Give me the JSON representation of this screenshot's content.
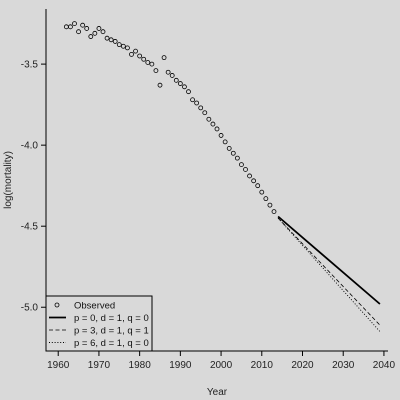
{
  "chart_data": {
    "type": "line",
    "title": "",
    "xlabel": "Year",
    "ylabel": "log(mortality)",
    "xlim": [
      1957,
      2041
    ],
    "ylim": [
      -5.27,
      -3.16
    ],
    "xticks": [
      1960,
      1970,
      1980,
      1990,
      2000,
      2010,
      2020,
      2030,
      2040
    ],
    "xtick_labels": [
      "1960",
      "1970",
      "1980",
      "1990",
      "2000",
      "2010",
      "2020",
      "2030",
      "2040"
    ],
    "yticks": [
      -5.0,
      -4.5,
      -4.0,
      -3.5
    ],
    "ytick_labels": [
      "-5.0",
      "-4.5",
      "-4.0",
      "-3.5"
    ],
    "grid": false,
    "legend_position": "bottom-left",
    "observed": {
      "name": "Observed",
      "x": [
        1962,
        1963,
        1964,
        1965,
        1966,
        1967,
        1968,
        1969,
        1970,
        1971,
        1972,
        1973,
        1974,
        1975,
        1976,
        1977,
        1978,
        1979,
        1980,
        1981,
        1982,
        1983,
        1984,
        1985,
        1986,
        1987,
        1988,
        1989,
        1990,
        1991,
        1992,
        1993,
        1994,
        1995,
        1996,
        1997,
        1998,
        1999,
        2000,
        2001,
        2002,
        2003,
        2004,
        2005,
        2006,
        2007,
        2008,
        2009,
        2010,
        2011,
        2012,
        2013
      ],
      "y": [
        -3.27,
        -3.27,
        -3.25,
        -3.3,
        -3.26,
        -3.28,
        -3.33,
        -3.31,
        -3.28,
        -3.3,
        -3.34,
        -3.35,
        -3.36,
        -3.38,
        -3.39,
        -3.4,
        -3.44,
        -3.42,
        -3.45,
        -3.47,
        -3.49,
        -3.5,
        -3.54,
        -3.63,
        -3.46,
        -3.55,
        -3.57,
        -3.6,
        -3.62,
        -3.64,
        -3.67,
        -3.72,
        -3.74,
        -3.77,
        -3.8,
        -3.84,
        -3.87,
        -3.9,
        -3.94,
        -3.98,
        -4.02,
        -4.05,
        -4.08,
        -4.12,
        -4.15,
        -4.19,
        -4.22,
        -4.25,
        -4.29,
        -4.33,
        -4.37,
        -4.41
      ]
    },
    "series": [
      {
        "name": "p = 0, d = 1, q = 0",
        "x": [
          2014,
          2039
        ],
        "y": [
          -4.44,
          -4.98
        ],
        "style": "solid"
      },
      {
        "name": "p = 3, d = 1, q = 1",
        "x": [
          2014,
          2039
        ],
        "y": [
          -4.45,
          -5.11
        ],
        "style": "dashed"
      },
      {
        "name": "p = 6, d = 1, q = 0",
        "x": [
          2014,
          2039
        ],
        "y": [
          -4.45,
          -5.15
        ],
        "style": "dotted"
      }
    ],
    "legend": [
      {
        "label": "Observed",
        "marker": "circle"
      },
      {
        "label": "p = 0, d = 1, q = 0",
        "marker": "solid"
      },
      {
        "label": "p = 3, d = 1, q = 1",
        "marker": "dashed"
      },
      {
        "label": "p = 6, d = 1, q = 0",
        "marker": "dotted"
      }
    ]
  }
}
